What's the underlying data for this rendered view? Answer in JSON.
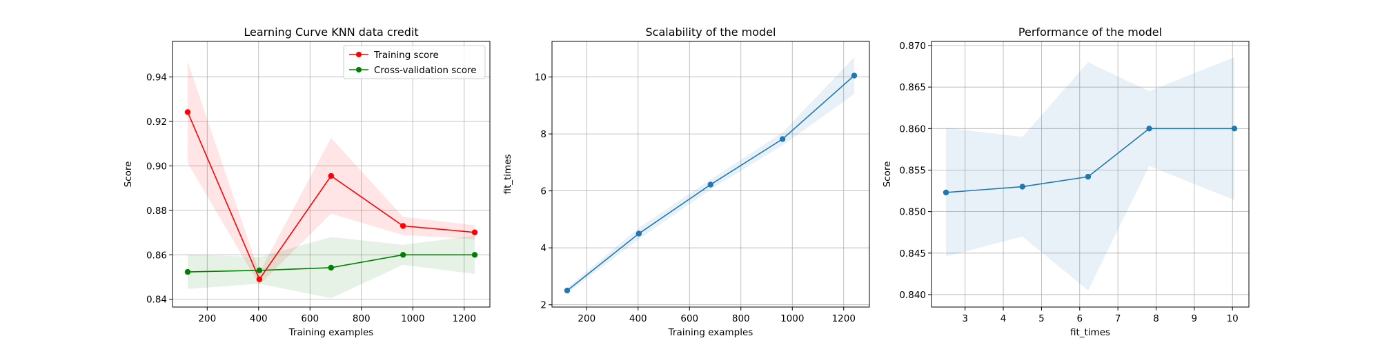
{
  "colors": {
    "training": "#ff0000",
    "cross_validation": "#008000",
    "fit": "#1f77b4",
    "grid": "#b0b0b0"
  },
  "chart_data": [
    {
      "type": "line",
      "title": "Learning Curve KNN data credit",
      "xlabel": "Training examples",
      "ylabel": "Score",
      "xlim": [
        65,
        1300
      ],
      "ylim": [
        0.8365,
        0.956
      ],
      "xticks": [
        200,
        400,
        600,
        800,
        1000,
        1200
      ],
      "yticks": [
        0.84,
        0.86,
        0.88,
        0.9,
        0.92,
        0.94
      ],
      "grid": true,
      "legend": "top-right",
      "x": [
        124,
        403,
        682,
        962,
        1241
      ],
      "series": [
        {
          "name": "Training score",
          "color_key": "training",
          "values": [
            0.9242,
            0.849,
            0.8955,
            0.873,
            0.8701
          ],
          "band_low": [
            0.9013,
            0.8465,
            0.8785,
            0.8689,
            0.867
          ],
          "band_high": [
            0.9469,
            0.852,
            0.9126,
            0.8771,
            0.8733
          ]
        },
        {
          "name": "Cross-validation score",
          "color_key": "cross_validation",
          "values": [
            0.8523,
            0.853,
            0.8542,
            0.86,
            0.86
          ],
          "band_low": [
            0.8446,
            0.847,
            0.8405,
            0.8555,
            0.8514
          ],
          "band_high": [
            0.8601,
            0.859,
            0.868,
            0.8645,
            0.8686
          ]
        }
      ]
    },
    {
      "type": "line",
      "title": "Scalability of the model",
      "xlabel": "Training examples",
      "ylabel": "fit_times",
      "xlim": [
        65,
        1300
      ],
      "ylim": [
        1.92,
        11.25
      ],
      "xticks": [
        200,
        400,
        600,
        800,
        1000,
        1200
      ],
      "yticks": [
        2,
        4,
        6,
        8,
        10
      ],
      "grid": true,
      "x": [
        124,
        403,
        682,
        962,
        1241
      ],
      "series": [
        {
          "color_key": "fit",
          "values": [
            2.5,
            4.5,
            6.22,
            7.82,
            10.05
          ],
          "band_low": [
            2.4,
            4.3,
            6.05,
            7.6,
            9.4
          ],
          "band_high": [
            2.6,
            4.7,
            6.4,
            8.05,
            10.7
          ]
        }
      ]
    },
    {
      "type": "line",
      "title": "Performance of the model",
      "xlabel": "fit_times",
      "ylabel": "Score",
      "xlim": [
        2.12,
        10.43
      ],
      "ylim": [
        0.8385,
        0.8705
      ],
      "xticks": [
        3,
        4,
        5,
        6,
        7,
        8,
        9,
        10
      ],
      "yticks": [
        0.84,
        0.845,
        0.85,
        0.855,
        0.86,
        0.865,
        0.87
      ],
      "grid": true,
      "x": [
        2.5,
        4.5,
        6.22,
        7.82,
        10.05
      ],
      "series": [
        {
          "color_key": "fit",
          "values": [
            0.8523,
            0.853,
            0.8542,
            0.86,
            0.86
          ],
          "band_low": [
            0.8446,
            0.847,
            0.8405,
            0.8555,
            0.8514
          ],
          "band_high": [
            0.8601,
            0.859,
            0.868,
            0.8645,
            0.8686
          ]
        }
      ]
    }
  ]
}
